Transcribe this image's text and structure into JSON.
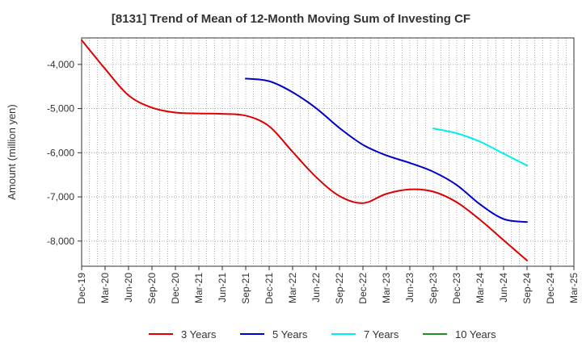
{
  "chart_data": {
    "type": "line",
    "title": "[8131]  Trend of Mean of 12-Month Moving Sum of Investing CF",
    "xlabel": "",
    "ylabel": "Amount (million yen)",
    "categories": [
      "Dec-19",
      "Mar-20",
      "Jun-20",
      "Sep-20",
      "Dec-20",
      "Mar-21",
      "Jun-21",
      "Sep-21",
      "Dec-21",
      "Mar-22",
      "Jun-22",
      "Sep-22",
      "Dec-22",
      "Mar-23",
      "Jun-23",
      "Sep-23",
      "Dec-23",
      "Mar-24",
      "Jun-24",
      "Sep-24",
      "Dec-24",
      "Mar-25"
    ],
    "ylim": [
      -8570,
      -3400
    ],
    "yticks": [
      -4000,
      -5000,
      -6000,
      -7000,
      -8000
    ],
    "ytick_labels": [
      "-4,000",
      "-5,000",
      "-6,000",
      "-7,000",
      "-8,000"
    ],
    "grid": true,
    "legend_position": "bottom",
    "series": [
      {
        "name": "3 Years",
        "color": "#dd0000",
        "values": [
          -3450,
          -4100,
          -4700,
          -4980,
          -5090,
          -5110,
          -5120,
          -5160,
          -5400,
          -5980,
          -6550,
          -6980,
          -7140,
          -6930,
          -6830,
          -6880,
          -7120,
          -7520,
          -7980,
          -8440,
          null,
          null
        ]
      },
      {
        "name": "5 Years",
        "color": "#0000cc",
        "values": [
          null,
          null,
          null,
          null,
          null,
          null,
          null,
          -4320,
          -4380,
          -4630,
          -4990,
          -5440,
          -5820,
          -6060,
          -6230,
          -6430,
          -6730,
          -7170,
          -7500,
          -7570,
          null,
          null
        ]
      },
      {
        "name": "7 Years",
        "color": "#00eeee",
        "values": [
          null,
          null,
          null,
          null,
          null,
          null,
          null,
          null,
          null,
          null,
          null,
          null,
          null,
          null,
          null,
          -5450,
          -5560,
          -5750,
          -6020,
          -6290,
          null,
          null
        ]
      },
      {
        "name": "10 Years",
        "color": "#228b22",
        "values": [
          null,
          null,
          null,
          null,
          null,
          null,
          null,
          null,
          null,
          null,
          null,
          null,
          null,
          null,
          null,
          null,
          null,
          null,
          null,
          null,
          null,
          null
        ]
      }
    ]
  }
}
